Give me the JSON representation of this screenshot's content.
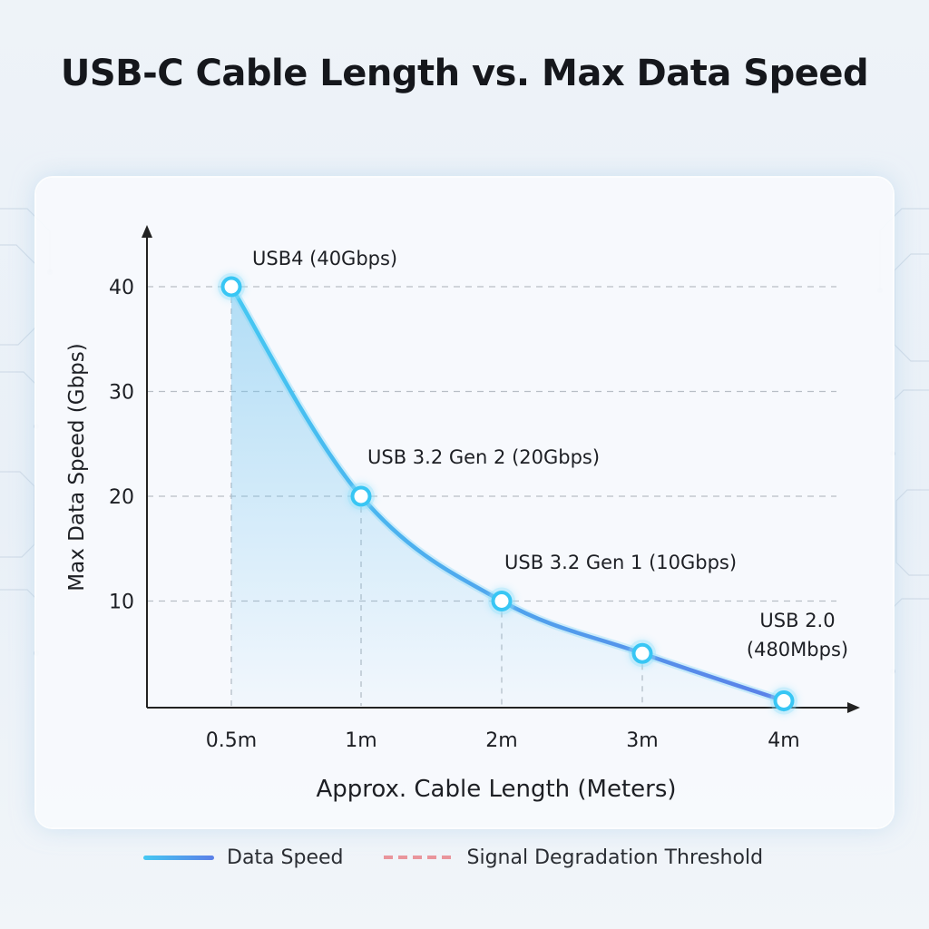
{
  "title": "USB-C Cable Length vs. Max Data Speed",
  "legend": {
    "data_speed_label": "Data Speed",
    "threshold_label": "Signal Degradation Threshold"
  },
  "colors": {
    "line_start": "#45c8f2",
    "line_end": "#5b7fe8",
    "area_fill": "#6cc2ef",
    "point_ring": "#38c6f4",
    "threshold": "#e8848c",
    "grid": "#b8bec6"
  },
  "chart_data": {
    "type": "line",
    "title": "USB-C Cable Length vs. Max Data Speed",
    "xlabel": "Approx. Cable Length (Meters)",
    "ylabel": "Max Data Speed (Gbps)",
    "categories": [
      "0.5m",
      "1m",
      "2m",
      "3m",
      "4m"
    ],
    "series": [
      {
        "name": "Data Speed",
        "values": [
          40,
          20,
          10,
          5,
          0.48
        ]
      }
    ],
    "annotations": [
      {
        "lines": [
          "USB4 (40Gbps)"
        ]
      },
      {
        "lines": [
          "USB 3.2 Gen 2 (20Gbps)"
        ]
      },
      {
        "lines": [
          "USB 3.2 Gen 1 (10Gbps)"
        ]
      },
      {
        "lines": []
      },
      {
        "lines": [
          "USB 2.0",
          "(480Mbps)"
        ]
      }
    ],
    "yticks": [
      10,
      20,
      30,
      40
    ],
    "ylim": [
      0,
      40
    ],
    "grid": true,
    "legend_position": "bottom"
  }
}
